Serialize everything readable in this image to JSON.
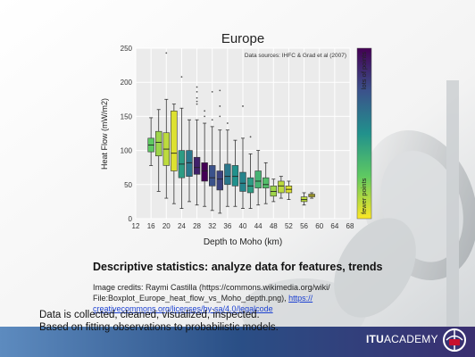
{
  "slide": {
    "heading": "Descriptive statistics: analyze data for features, trends",
    "credits_line1": "Image credits: Raymi Castilla (https://commons.wikimedia.org/wiki/",
    "credits_line2": "File:Boxplot_Europe_heat_flow_vs_Moho_depth.png), ",
    "credits_link": "https://creativecommons.org/licenses/by-sa/4.0/legalcode",
    "credits_link_part1": "https://",
    "credits_link_part2": "creativecommons.org/licenses/by-sa/4.0/legalcode",
    "bottom_line1": "Data is collected, cleaned, visualized, inspected.",
    "bottom_line2": "Based on fitting observations to probabilistic models.",
    "logo_bold": "ITU",
    "logo_light": "ACADEMY"
  },
  "colors": {
    "box_high": "#440154",
    "box_mid": "#21918c",
    "box_low": "#fde725",
    "plot_bg": "#ebebeb",
    "grid": "#ffffff"
  },
  "chart_data": {
    "type": "box",
    "title": "Europe",
    "annotation": "Data sources: IHFC & Grad et al (2007)",
    "xlabel": "Depth to Moho (km)",
    "ylabel": "Heat Flow (mW/m2)",
    "xlim": [
      12,
      68
    ],
    "ylim": [
      0,
      250
    ],
    "xticks": [
      12,
      16,
      20,
      24,
      28,
      32,
      36,
      40,
      44,
      48,
      52,
      56,
      60,
      64,
      68
    ],
    "yticks": [
      0,
      50,
      100,
      150,
      200,
      250
    ],
    "grid": true,
    "colorbar": {
      "top_label": "lots of points",
      "bottom_label": "fewer points"
    },
    "boxes": [
      {
        "x": 16,
        "whisker_low": 78,
        "q1": 98,
        "median": 108,
        "q3": 118,
        "whisker_high": 148,
        "density": 0.25
      },
      {
        "x": 18,
        "whisker_low": 40,
        "q1": 92,
        "median": 112,
        "q3": 128,
        "whisker_high": 160,
        "density": 0.15
      },
      {
        "x": 20,
        "whisker_low": 30,
        "q1": 78,
        "median": 102,
        "q3": 126,
        "whisker_high": 175,
        "density": 0.1,
        "outliers": [
          243
        ]
      },
      {
        "x": 22,
        "whisker_low": 22,
        "q1": 70,
        "median": 96,
        "q3": 158,
        "whisker_high": 168,
        "density": 0.05
      },
      {
        "x": 24,
        "whisker_low": 15,
        "q1": 60,
        "median": 80,
        "q3": 100,
        "whisker_high": 162,
        "density": 0.45,
        "outliers": [
          208
        ]
      },
      {
        "x": 26,
        "whisker_low": 25,
        "q1": 62,
        "median": 82,
        "q3": 100,
        "whisker_high": 145,
        "density": 0.6
      },
      {
        "x": 28,
        "whisker_low": 20,
        "q1": 65,
        "median": 75,
        "q3": 90,
        "whisker_high": 145,
        "density": 0.9,
        "outliers": [
          168,
          172,
          177,
          186,
          193
        ]
      },
      {
        "x": 30,
        "whisker_low": 18,
        "q1": 55,
        "median": 70,
        "q3": 82,
        "whisker_high": 140,
        "density": 1.0,
        "outliers": [
          150,
          158
        ]
      },
      {
        "x": 32,
        "whisker_low": 12,
        "q1": 48,
        "median": 60,
        "q3": 78,
        "whisker_high": 135,
        "density": 0.75,
        "outliers": [
          145,
          186
        ]
      },
      {
        "x": 34,
        "whisker_low": 8,
        "q1": 42,
        "median": 58,
        "q3": 70,
        "whisker_high": 130,
        "density": 0.8,
        "outliers": [
          150,
          165,
          188
        ]
      },
      {
        "x": 36,
        "whisker_low": 18,
        "q1": 50,
        "median": 62,
        "q3": 80,
        "whisker_high": 130,
        "density": 0.6,
        "outliers": [
          140
        ]
      },
      {
        "x": 38,
        "whisker_low": 18,
        "q1": 48,
        "median": 62,
        "q3": 78,
        "whisker_high": 115,
        "density": 0.5
      },
      {
        "x": 40,
        "whisker_low": 15,
        "q1": 40,
        "median": 52,
        "q3": 68,
        "whisker_high": 118,
        "density": 0.55,
        "outliers": [
          165
        ]
      },
      {
        "x": 42,
        "whisker_low": 15,
        "q1": 38,
        "median": 48,
        "q3": 60,
        "whisker_high": 95,
        "density": 0.45,
        "outliers": [
          120
        ]
      },
      {
        "x": 44,
        "whisker_low": 20,
        "q1": 45,
        "median": 55,
        "q3": 70,
        "whisker_high": 100,
        "density": 0.35
      },
      {
        "x": 46,
        "whisker_low": 22,
        "q1": 45,
        "median": 50,
        "q3": 60,
        "whisker_high": 82,
        "density": 0.3
      },
      {
        "x": 48,
        "whisker_low": 25,
        "q1": 33,
        "median": 40,
        "q3": 48,
        "whisker_high": 58,
        "density": 0.15
      },
      {
        "x": 50,
        "whisker_low": 30,
        "q1": 38,
        "median": 48,
        "q3": 55,
        "whisker_high": 62,
        "density": 0.1
      },
      {
        "x": 52,
        "whisker_low": 28,
        "q1": 38,
        "median": 43,
        "q3": 48,
        "whisker_high": 55,
        "density": 0.05
      },
      {
        "x": 56,
        "whisker_low": 20,
        "q1": 25,
        "median": 28,
        "q3": 32,
        "whisker_high": 38,
        "density": 0.1
      },
      {
        "x": 58,
        "whisker_low": 30,
        "q1": 32,
        "median": 34,
        "q3": 36,
        "whisker_high": 38,
        "density": 0.02
      }
    ]
  }
}
